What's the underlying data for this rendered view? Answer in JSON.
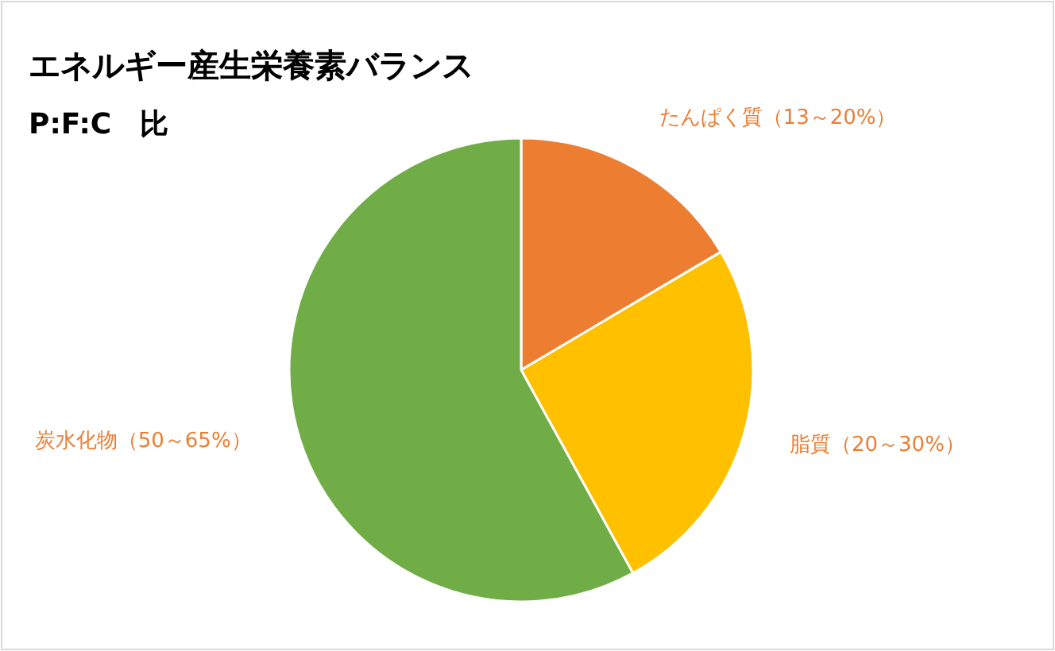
{
  "chart_data": {
    "type": "pie",
    "title": "エネルギー産生栄養素バランス",
    "subtitle": "P:F:C　比",
    "categories": [
      "たんぱく質（13～20%）",
      "脂質（20～30%）",
      "炭水化物（50～65%）"
    ],
    "values": [
      16.5,
      25.5,
      58
    ],
    "colors": [
      "#ed7d31",
      "#ffc000",
      "#70ad47"
    ]
  }
}
